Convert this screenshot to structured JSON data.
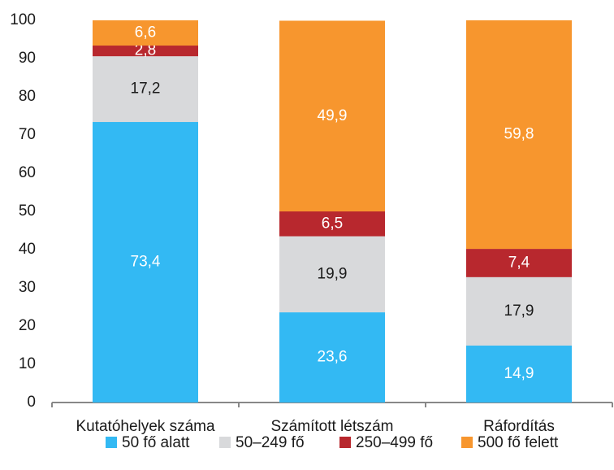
{
  "chart_data": {
    "type": "stacked_bar",
    "categories": [
      "Kutatóhelyek száma",
      "Számított létszám",
      "Ráfordítás"
    ],
    "series": [
      {
        "name": "50 fő alatt",
        "color": "#33b9f3",
        "values": [
          73.4,
          23.6,
          14.9
        ],
        "value_labels": [
          "73,4",
          "23,6",
          "14,9"
        ]
      },
      {
        "name": "50–249 fő",
        "color": "#d8d9db",
        "values": [
          17.2,
          19.9,
          17.9
        ],
        "value_labels": [
          "17,2",
          "19,9",
          "17,9"
        ]
      },
      {
        "name": "250–499 fő",
        "color": "#b8282e",
        "values": [
          2.8,
          6.5,
          7.4
        ],
        "value_labels": [
          "2,8",
          "6,5",
          "7,4"
        ]
      },
      {
        "name": "500 fő felett",
        "color": "#f7962e",
        "values": [
          6.6,
          49.9,
          59.8
        ],
        "value_labels": [
          "6,6",
          "49,9",
          "59,8"
        ]
      }
    ],
    "ylim": [
      0,
      100
    ],
    "yticks": [
      0,
      10,
      20,
      30,
      40,
      50,
      60,
      70,
      80,
      90,
      100
    ],
    "grid": false
  }
}
